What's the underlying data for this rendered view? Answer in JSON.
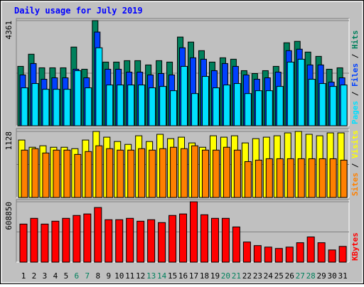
{
  "chart_data": [
    {
      "type": "bar",
      "title": "Daily usage for July 2019",
      "separator": " / ",
      "ylim": [
        0,
        4361
      ],
      "yticks": [
        4361
      ],
      "series": [
        {
          "name": "Hits",
          "color": "#00805c",
          "values": [
            2463,
            2967,
            2403,
            2403,
            2403,
            3264,
            2344,
            4361,
            2641,
            2641,
            2700,
            2700,
            2522,
            2700,
            2641,
            3679,
            3471,
            3115,
            2641,
            2819,
            2759,
            2285,
            2166,
            2285,
            2463,
            3442,
            3501,
            3056,
            2878,
            2344,
            2403
          ]
        },
        {
          "name": "Files",
          "color": "#0040ff",
          "values": [
            2107,
            2581,
            1929,
            1988,
            1988,
            2344,
            1988,
            3887,
            2344,
            2344,
            2225,
            2225,
            2107,
            2166,
            2107,
            3234,
            2819,
            2759,
            2285,
            2581,
            2463,
            2107,
            1929,
            1988,
            2225,
            3115,
            3175,
            2522,
            2522,
            1810,
            1988
          ]
        },
        {
          "name": "Pages",
          "color": "#00e0ff",
          "values": [
            1573,
            1751,
            1513,
            1513,
            1513,
            2285,
            1573,
            3234,
            1691,
            1691,
            1691,
            1691,
            1573,
            1632,
            1454,
            2463,
            1335,
            2047,
            1573,
            1691,
            1751,
            1335,
            1454,
            1454,
            1632,
            2641,
            2759,
            1929,
            1751,
            1632,
            1691
          ]
        }
      ]
    },
    {
      "type": "bar",
      "separator": " / ",
      "ylim": [
        0,
        1128
      ],
      "yticks": [
        1128
      ],
      "series": [
        {
          "name": "Visits",
          "color": "#ffff00",
          "values": [
            981,
            858,
            883,
            858,
            858,
            834,
            981,
            1128,
            1030,
            956,
            907,
            1054,
            956,
            1079,
            1005,
            1030,
            932,
            858,
            1054,
            1030,
            1054,
            932,
            1005,
            1030,
            1054,
            1103,
            1128,
            1079,
            1054,
            1103,
            1103
          ]
        },
        {
          "name": "Sites",
          "color": "#ff8000",
          "values": [
            809,
            834,
            760,
            809,
            809,
            736,
            785,
            883,
            834,
            809,
            809,
            834,
            809,
            834,
            858,
            834,
            883,
            809,
            809,
            858,
            809,
            613,
            638,
            662,
            662,
            662,
            662,
            662,
            662,
            662,
            638
          ]
        }
      ]
    },
    {
      "type": "bar",
      "separator": " / ",
      "ylim": [
        0,
        608850
      ],
      "yticks": [
        608850
      ],
      "categories": [
        "1",
        "2",
        "3",
        "4",
        "5",
        "6",
        "7",
        "8",
        "9",
        "10",
        "11",
        "12",
        "13",
        "14",
        "15",
        "16",
        "17",
        "18",
        "19",
        "20",
        "21",
        "22",
        "23",
        "24",
        "25",
        "26",
        "27",
        "28",
        "29",
        "30",
        "31"
      ],
      "category_colors": [
        "#000000",
        "#000000",
        "#000000",
        "#000000",
        "#000000",
        "#00805c",
        "#00805c",
        "#000000",
        "#000000",
        "#000000",
        "#000000",
        "#000000",
        "#00805c",
        "#00805c",
        "#000000",
        "#000000",
        "#000000",
        "#000000",
        "#000000",
        "#00805c",
        "#00805c",
        "#000000",
        "#000000",
        "#000000",
        "#000000",
        "#000000",
        "#00805c",
        "#00805c",
        "#000000",
        "#000000",
        "#000000"
      ],
      "series": [
        {
          "name": "KBytes",
          "color": "#ff0000",
          "values": [
            384000,
            442000,
            384000,
            413000,
            442000,
            471000,
            486000,
            551000,
            428000,
            428000,
            442000,
            413000,
            428000,
            399000,
            471000,
            486000,
            608850,
            478000,
            442000,
            442000,
            355000,
            203000,
            167000,
            152000,
            138000,
            152000,
            196000,
            254000,
            196000,
            123000,
            159000
          ]
        }
      ]
    }
  ]
}
